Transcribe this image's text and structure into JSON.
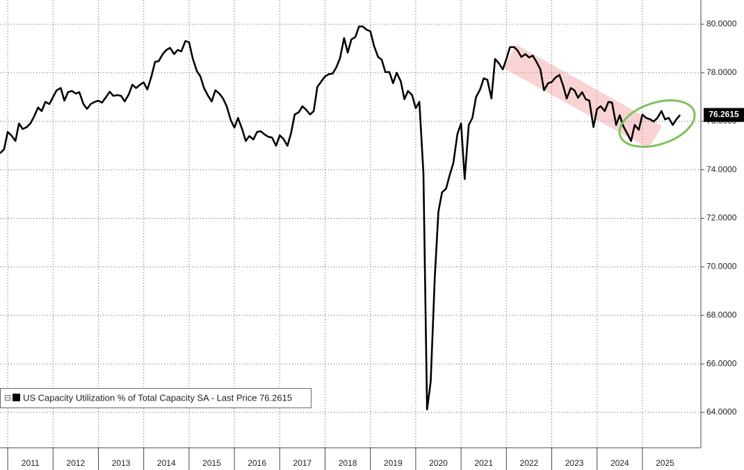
{
  "chart_data": {
    "type": "line",
    "x": [
      2010.83,
      2010.92,
      2011,
      2011.08,
      2011.17,
      2011.25,
      2011.33,
      2011.42,
      2011.5,
      2011.58,
      2011.67,
      2011.75,
      2011.83,
      2011.92,
      2012,
      2012.08,
      2012.17,
      2012.25,
      2012.33,
      2012.42,
      2012.5,
      2012.58,
      2012.67,
      2012.75,
      2012.83,
      2012.92,
      2013,
      2013.08,
      2013.17,
      2013.25,
      2013.33,
      2013.42,
      2013.5,
      2013.58,
      2013.67,
      2013.75,
      2013.83,
      2013.92,
      2014,
      2014.08,
      2014.17,
      2014.25,
      2014.33,
      2014.42,
      2014.5,
      2014.58,
      2014.67,
      2014.75,
      2014.83,
      2014.92,
      2015,
      2015.08,
      2015.17,
      2015.25,
      2015.33,
      2015.42,
      2015.5,
      2015.58,
      2015.67,
      2015.75,
      2015.83,
      2015.92,
      2016,
      2016.08,
      2016.17,
      2016.25,
      2016.33,
      2016.42,
      2016.5,
      2016.58,
      2016.67,
      2016.75,
      2016.83,
      2016.92,
      2017,
      2017.08,
      2017.17,
      2017.25,
      2017.33,
      2017.42,
      2017.5,
      2017.58,
      2017.67,
      2017.75,
      2017.83,
      2017.92,
      2018,
      2018.08,
      2018.17,
      2018.25,
      2018.33,
      2018.42,
      2018.5,
      2018.58,
      2018.67,
      2018.75,
      2018.83,
      2018.92,
      2019,
      2019.08,
      2019.17,
      2019.25,
      2019.33,
      2019.42,
      2019.5,
      2019.58,
      2019.67,
      2019.75,
      2019.83,
      2019.92,
      2020,
      2020.08,
      2020.17,
      2020.25,
      2020.33,
      2020.42,
      2020.5,
      2020.58,
      2020.67,
      2020.75,
      2020.83,
      2020.92,
      2021,
      2021.08,
      2021.17,
      2021.25,
      2021.33,
      2021.42,
      2021.5,
      2021.58,
      2021.67,
      2021.75,
      2021.83,
      2021.92,
      2022,
      2022.08,
      2022.17,
      2022.25,
      2022.33,
      2022.42,
      2022.5,
      2022.58,
      2022.67,
      2022.75,
      2022.83,
      2022.92,
      2023,
      2023.08,
      2023.17,
      2023.25,
      2023.33,
      2023.42,
      2023.5,
      2023.58,
      2023.67,
      2023.75,
      2023.83,
      2023.92,
      2024,
      2024.08,
      2024.17,
      2024.25,
      2024.33,
      2024.42,
      2024.5,
      2024.58,
      2024.67,
      2024.75,
      2024.83,
      2024.92,
      2025,
      2025.08,
      2025.17,
      2025.25,
      2025.33,
      2025.42,
      2025.5,
      2025.58,
      2025.67,
      2025.75,
      2025.83
    ],
    "series": [
      {
        "name": "US Capacity Utilization % of Total Capacity SA - Last Price 76.2615",
        "color": "#000000",
        "values": [
          74.68,
          74.85,
          75.56,
          75.42,
          75.19,
          75.91,
          75.68,
          75.76,
          75.91,
          76.19,
          76.57,
          76.42,
          76.8,
          76.71,
          77.0,
          77.28,
          77.37,
          76.85,
          77.2,
          77.25,
          77.14,
          77.2,
          76.71,
          76.51,
          76.71,
          76.8,
          76.85,
          76.77,
          77.0,
          77.22,
          77.05,
          77.08,
          77.05,
          76.82,
          77.11,
          77.51,
          77.37,
          77.51,
          77.6,
          77.31,
          77.85,
          78.45,
          78.48,
          78.77,
          78.94,
          79.03,
          78.77,
          78.94,
          78.88,
          79.31,
          79.26,
          78.6,
          78.08,
          77.85,
          77.37,
          77.05,
          76.82,
          77.28,
          77.14,
          76.94,
          76.62,
          76.05,
          75.74,
          76.14,
          75.68,
          75.19,
          75.39,
          75.25,
          75.56,
          75.59,
          75.45,
          75.36,
          75.33,
          74.99,
          75.42,
          75.28,
          74.99,
          75.51,
          76.28,
          76.37,
          76.62,
          76.48,
          76.28,
          76.42,
          77.42,
          77.65,
          77.85,
          77.94,
          77.97,
          78.23,
          78.6,
          79.43,
          78.83,
          79.37,
          79.48,
          79.91,
          79.91,
          79.77,
          79.71,
          79.11,
          78.65,
          78.54,
          78.03,
          78.03,
          77.57,
          78.0,
          77.65,
          76.91,
          77.25,
          77.08,
          76.54,
          76.8,
          73.85,
          64.12,
          65.26,
          69.55,
          72.27,
          73.07,
          73.22,
          73.79,
          74.28,
          75.48,
          75.91,
          73.62,
          75.85,
          76.14,
          77.0,
          77.31,
          77.77,
          77.71,
          76.94,
          78.57,
          78.4,
          78.14,
          78.57,
          79.06,
          79.06,
          78.91,
          78.65,
          78.77,
          78.63,
          78.71,
          78.43,
          78.14,
          77.28,
          77.57,
          77.62,
          77.8,
          77.91,
          77.48,
          76.94,
          77.37,
          77.28,
          76.97,
          77.2,
          76.91,
          76.85,
          75.76,
          76.51,
          76.62,
          76.42,
          76.8,
          76.77,
          75.85,
          76.25,
          75.79,
          75.48,
          75.19,
          75.85,
          75.65,
          76.28,
          76.14,
          76.08,
          75.99,
          76.14,
          76.42,
          76.08,
          76.14,
          75.85,
          76.08,
          76.2615
        ]
      }
    ],
    "xlim": [
      2010.83,
      2026.29
    ],
    "xticks": [
      2011,
      2012,
      2013,
      2014,
      2015,
      2016,
      2017,
      2018,
      2019,
      2020,
      2021,
      2022,
      2023,
      2024,
      2025
    ],
    "ylim": [
      62.54,
      81.0
    ],
    "yticks": [
      {
        "value": 64,
        "label": "64.0000"
      },
      {
        "value": 66,
        "label": "66.0000"
      },
      {
        "value": 68,
        "label": "68.0000"
      },
      {
        "value": 70,
        "label": "70.0000"
      },
      {
        "value": 72,
        "label": "72.0000"
      },
      {
        "value": 74,
        "label": "74.0000"
      },
      {
        "value": 76,
        "label": "76.0000"
      },
      {
        "value": 78,
        "label": "78.0000"
      },
      {
        "value": 80,
        "label": "80.0000"
      }
    ],
    "grid": true
  }
}
